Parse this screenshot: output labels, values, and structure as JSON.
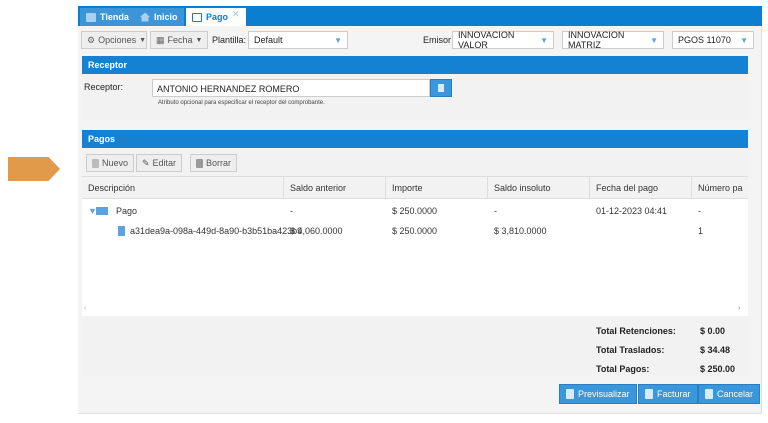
{
  "tabs": [
    {
      "label": "Tienda",
      "icon": "store-icon"
    },
    {
      "label": "Inicio",
      "icon": "home-icon"
    },
    {
      "label": "Pago",
      "icon": "form-icon",
      "active": true
    }
  ],
  "toolbar": {
    "opciones": "Opciones",
    "fecha": "Fecha",
    "plantilla_label": "Plantilla:",
    "plantilla_value": "Default",
    "emisor_label": "Emisor",
    "emisor_value": "INNOVACION VALOR",
    "sucursal_value": "INNOVACION MATRIZ",
    "serie_value": "PGOS 11070"
  },
  "receptor": {
    "title": "Receptor",
    "label": "Receptor:",
    "value": "ANTONIO HERNANDEZ ROMERO",
    "hint": "Atributo opcional para especificar el receptor del comprobante."
  },
  "pagos": {
    "title": "Pagos",
    "nuevo": "Nuevo",
    "editar": "Editar",
    "borrar": "Borrar",
    "columns": [
      "Descripción",
      "Saldo anterior",
      "Importe",
      "Saldo insoluto",
      "Fecha del pago",
      "Número pa"
    ],
    "rows": [
      [
        "Pago",
        "-",
        "$ 250.0000",
        "-",
        "01-12-2023 04:41",
        "-"
      ],
      [
        "a31dea9a-098a-449d-8a90-b3b51ba423b9",
        "$ 4,060.0000",
        "$ 250.0000",
        "$ 3,810.0000",
        "",
        "1"
      ]
    ]
  },
  "totals": [
    {
      "label": "Total Retenciones:",
      "value": "$ 0.00"
    },
    {
      "label": "Total Traslados:",
      "value": "$ 34.48"
    },
    {
      "label": "Total Pagos:",
      "value": "$ 250.00"
    }
  ],
  "footer": {
    "previsualizar": "Previsualizar",
    "facturar": "Facturar",
    "cancelar": "Cancelar"
  },
  "colors": {
    "accent": "#0a7fd0",
    "arrow": "#e09a4a"
  }
}
